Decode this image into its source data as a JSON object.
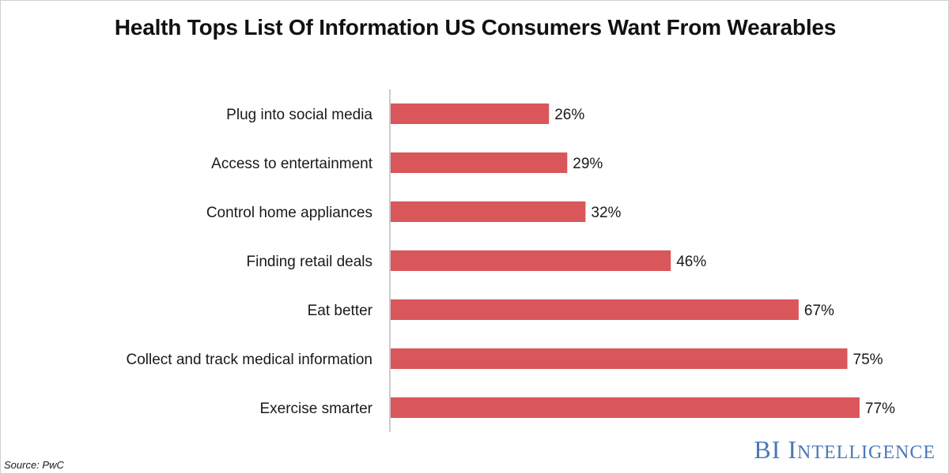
{
  "chart_data": {
    "type": "bar",
    "orientation": "horizontal",
    "title": "Health Tops List Of Information US Consumers Want From Wearables",
    "categories": [
      "Plug into social media",
      "Access to entertainment",
      "Control home appliances",
      "Finding retail deals",
      "Eat better",
      "Collect and track medical information",
      "Exercise smarter"
    ],
    "values": [
      26,
      29,
      32,
      46,
      67,
      75,
      77
    ],
    "value_labels": [
      "26%",
      "29%",
      "32%",
      "46%",
      "67%",
      "75%",
      "77%"
    ],
    "unit": "%",
    "xlim": [
      0,
      100
    ],
    "grid": false,
    "bar_color": "#d9575a"
  },
  "source": "Source: PwC",
  "brand": {
    "first": "BI",
    "second_initial": "I",
    "second_rest": "ntelligence",
    "color": "#4a78b8"
  }
}
